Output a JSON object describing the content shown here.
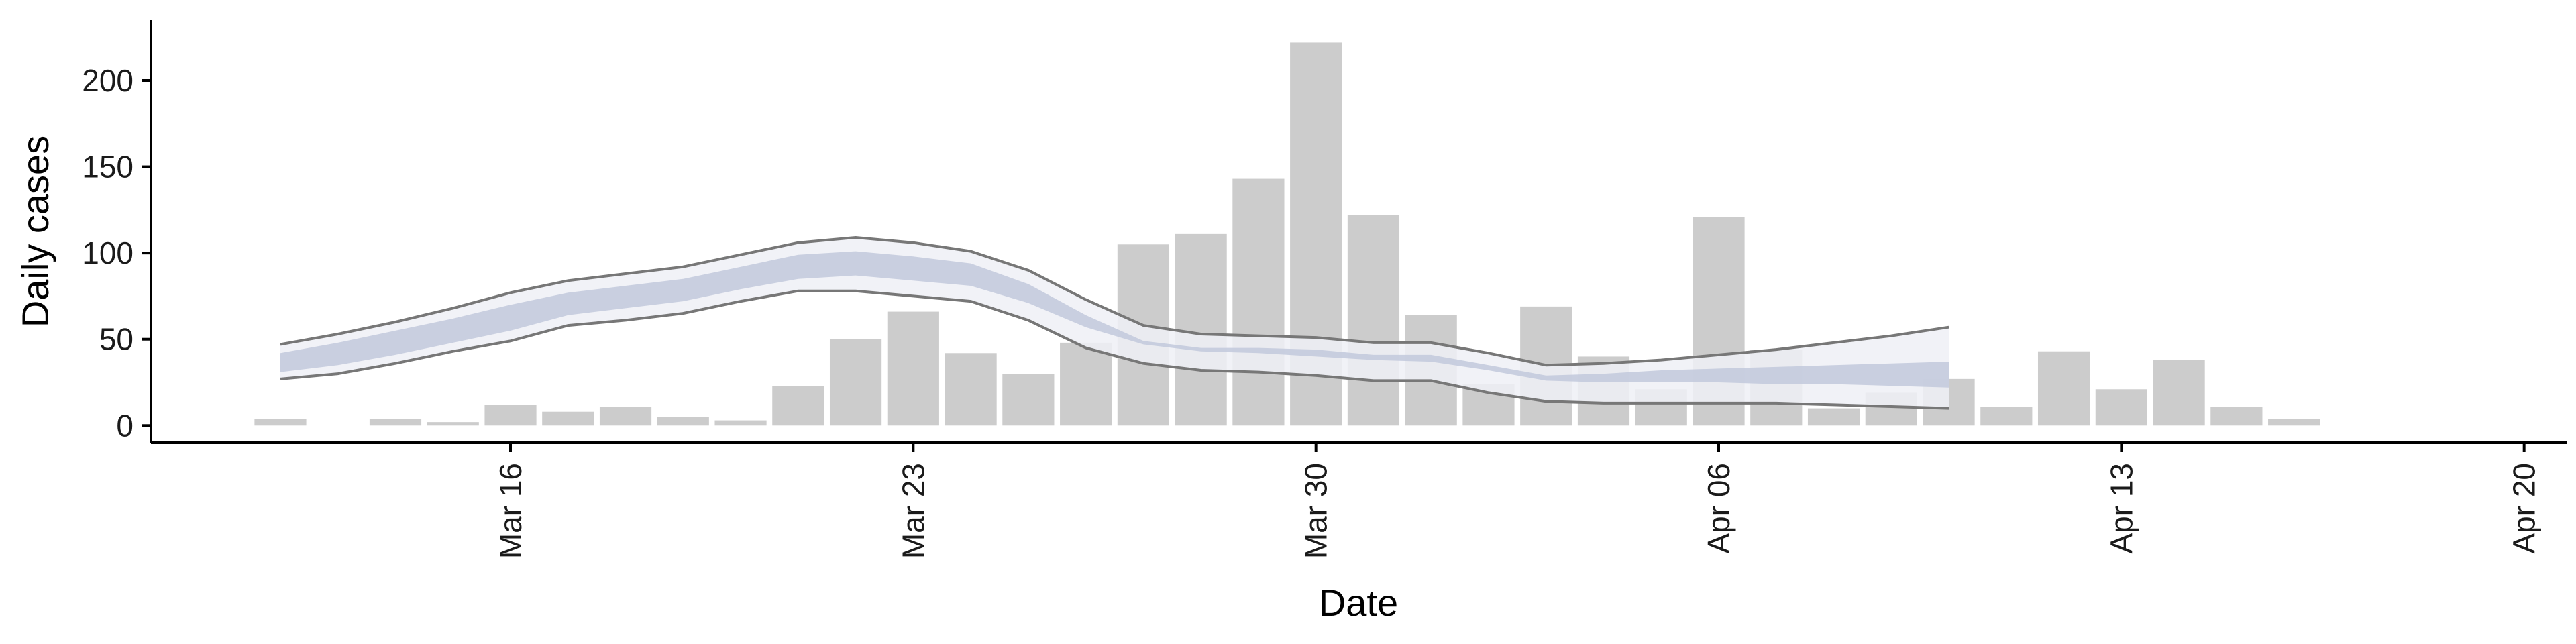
{
  "chart_data": {
    "type": "bar",
    "title": "",
    "xlabel": "Date",
    "ylabel": "Daily cases",
    "x_ticks": [
      "Mar 16",
      "Mar 23",
      "Mar 30",
      "Apr 06",
      "Apr 13",
      "Apr 20"
    ],
    "y_ticks": [
      "0",
      "50",
      "100",
      "150",
      "200"
    ],
    "ylim": [
      -10,
      235
    ],
    "grid": false,
    "colors": {
      "bars": "#cccccc",
      "outer_band": "#eef0f6",
      "inner_band": "#c2c9dc",
      "band_edge": "#777777",
      "axis": "#000000"
    },
    "bars": {
      "dates": [
        "2020-03-12",
        "2020-03-14",
        "2020-03-15",
        "2020-03-16",
        "2020-03-17",
        "2020-03-18",
        "2020-03-19",
        "2020-03-20",
        "2020-03-21",
        "2020-03-22",
        "2020-03-23",
        "2020-03-24",
        "2020-03-25",
        "2020-03-26",
        "2020-03-27",
        "2020-03-28",
        "2020-03-29",
        "2020-03-30",
        "2020-03-31",
        "2020-04-01",
        "2020-04-02",
        "2020-04-03",
        "2020-04-04",
        "2020-04-05",
        "2020-04-06",
        "2020-04-07",
        "2020-04-08",
        "2020-04-09",
        "2020-04-10",
        "2020-04-11",
        "2020-04-12",
        "2020-04-13",
        "2020-04-14",
        "2020-04-15",
        "2020-04-16",
        "2020-04-17",
        "2020-04-18"
      ],
      "values": [
        4,
        4,
        2,
        12,
        8,
        11,
        5,
        3,
        23,
        50,
        66,
        42,
        30,
        48,
        105,
        111,
        143,
        222,
        122,
        64,
        24,
        69,
        40,
        21,
        121,
        44,
        10,
        19,
        27,
        11,
        43,
        21,
        38,
        11,
        4,
        0,
        0
      ]
    },
    "estimate": {
      "dates": [
        "2020-03-12",
        "2020-03-13",
        "2020-03-14",
        "2020-03-15",
        "2020-03-16",
        "2020-03-17",
        "2020-03-18",
        "2020-03-19",
        "2020-03-20",
        "2020-03-21",
        "2020-03-22",
        "2020-03-23",
        "2020-03-24",
        "2020-03-25",
        "2020-03-26",
        "2020-03-27",
        "2020-03-28",
        "2020-03-29",
        "2020-03-30",
        "2020-03-31",
        "2020-04-01",
        "2020-04-02",
        "2020-04-03",
        "2020-04-04",
        "2020-04-05",
        "2020-04-06",
        "2020-04-07",
        "2020-04-08",
        "2020-04-09",
        "2020-04-10"
      ],
      "lower90": [
        27,
        30,
        36,
        43,
        49,
        58,
        61,
        65,
        72,
        78,
        78,
        75,
        72,
        61,
        45,
        36,
        32,
        31,
        29,
        26,
        26,
        19,
        14,
        13,
        13,
        13,
        13,
        12,
        11,
        10
      ],
      "upper90": [
        47,
        53,
        60,
        68,
        77,
        84,
        88,
        92,
        99,
        106,
        109,
        106,
        101,
        90,
        73,
        58,
        53,
        52,
        51,
        48,
        48,
        42,
        35,
        36,
        38,
        41,
        44,
        48,
        52,
        57
      ],
      "lower50": [
        31,
        35,
        41,
        48,
        55,
        64,
        68,
        72,
        79,
        85,
        87,
        84,
        81,
        71,
        57,
        47,
        43,
        42,
        40,
        38,
        37,
        32,
        26,
        25,
        25,
        25,
        24,
        24,
        23,
        22
      ],
      "upper50": [
        42,
        48,
        55,
        62,
        70,
        77,
        81,
        85,
        92,
        99,
        101,
        98,
        94,
        82,
        64,
        49,
        45,
        45,
        44,
        41,
        41,
        35,
        29,
        30,
        32,
        33,
        34,
        35,
        36,
        37
      ]
    }
  }
}
